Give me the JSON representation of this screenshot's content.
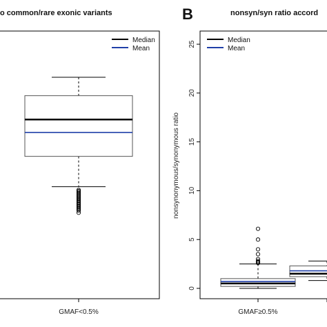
{
  "chart_data": [
    {
      "type": "box",
      "title": "o common/rare exonic variants",
      "legend": {
        "position": "top-right",
        "entries": [
          {
            "name": "Median",
            "color": "#000000"
          },
          {
            "name": "Mean",
            "color": "#1f3fa8"
          }
        ]
      },
      "categories": [
        "GMAF<0.5%"
      ],
      "boxes": [
        {
          "category": "GMAF<0.5%",
          "whisker_low": 0.45,
          "q1": 0.59,
          "median": 0.76,
          "mean": 0.7,
          "q3": 0.87,
          "whisker_high": 0.955,
          "outliers": [
            0.33,
            0.34,
            0.345,
            0.35,
            0.355,
            0.36,
            0.365,
            0.37,
            0.375,
            0.38,
            0.385,
            0.39,
            0.395,
            0.4,
            0.405,
            0.41,
            0.415,
            0.42,
            0.425,
            0.43,
            0.435
          ]
        }
      ],
      "ylim": [
        0,
        1.13
      ],
      "ylabel": "",
      "xlabel": ""
    },
    {
      "type": "box",
      "panel_label": "B",
      "title": "nonsyn/syn ratio accord",
      "legend": {
        "position": "top-left",
        "entries": [
          {
            "name": "Median",
            "color": "#000000"
          },
          {
            "name": "Mean",
            "color": "#1f3fa8"
          }
        ]
      },
      "categories": [
        "GMAF≥0.5%",
        ""
      ],
      "boxes": [
        {
          "category": "GMAF≥0.5%",
          "whisker_low": 0.0,
          "q1": 0.2,
          "median": 0.5,
          "mean": 0.7,
          "q3": 1.0,
          "whisker_high": 2.5,
          "outliers": [
            2.6,
            2.7,
            2.8,
            3.0,
            3.5,
            4.0,
            5.0,
            6.1
          ]
        },
        {
          "category": "",
          "whisker_low": 0.8,
          "q1": 1.2,
          "median": 1.5,
          "mean": 1.8,
          "q3": 2.3,
          "whisker_high": 2.8,
          "outliers": []
        }
      ],
      "yticks": [
        0,
        5,
        10,
        15,
        20,
        25
      ],
      "ylim": [
        0,
        25.5
      ],
      "ylabel": "nonsynonymous/synonymous ratio",
      "xlabel": ""
    }
  ]
}
